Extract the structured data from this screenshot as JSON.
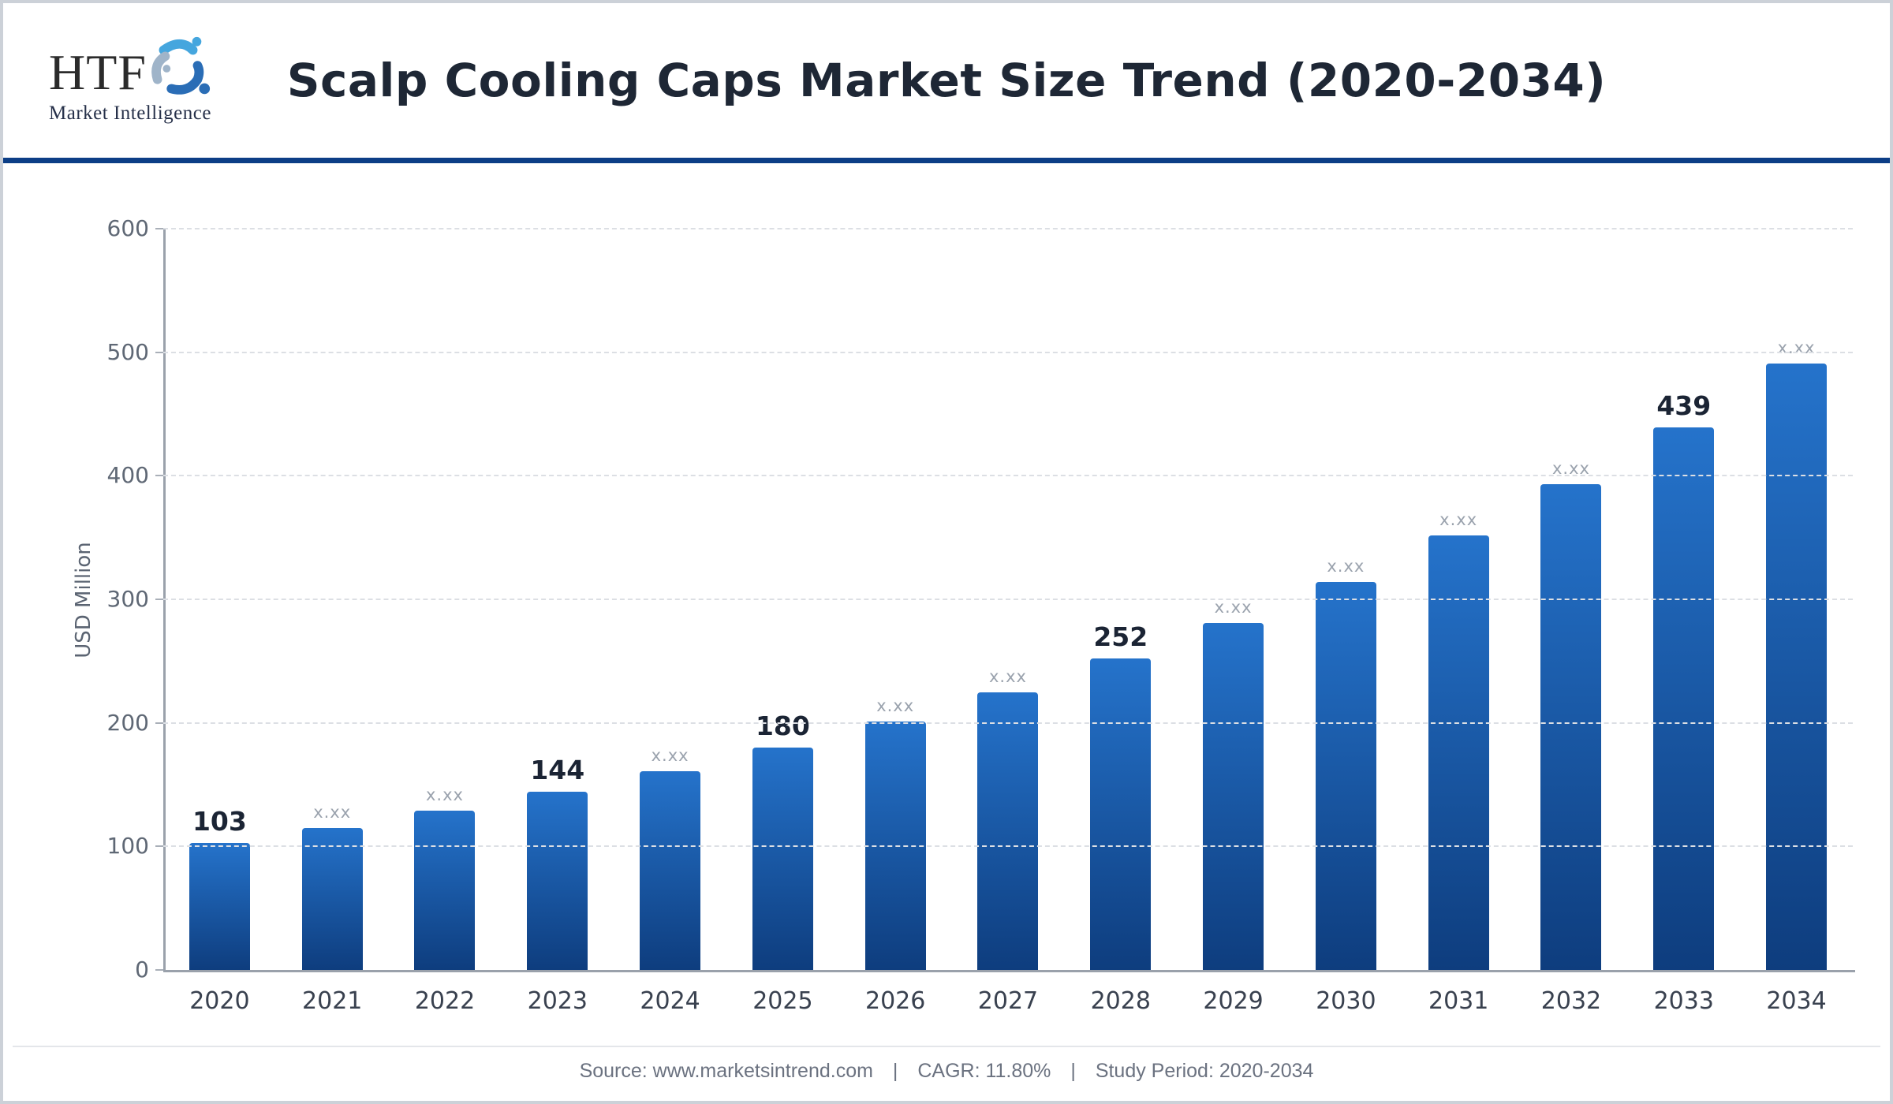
{
  "header": {
    "logo": {
      "acronym": "HTF",
      "subtitle": "Market Intelligence",
      "swirl_colors": [
        "#45a6de",
        "#9fb4c9",
        "#2a6db6"
      ]
    },
    "title": "Scalp Cooling Caps Market Size Trend (2020-2034)",
    "rule_color": "#0c3e86"
  },
  "chart_data": {
    "type": "bar",
    "title": "Scalp Cooling Caps Market Size Trend (2020-2034)",
    "xlabel": "",
    "ylabel": "USD Million",
    "ylim": [
      0,
      600
    ],
    "yticks": [
      0,
      100,
      200,
      300,
      400,
      500,
      600
    ],
    "grid": "horizontal dashed",
    "legend": "none",
    "categories": [
      "2020",
      "2021",
      "2022",
      "2023",
      "2024",
      "2025",
      "2026",
      "2027",
      "2028",
      "2029",
      "2030",
      "2031",
      "2032",
      "2033",
      "2034"
    ],
    "values": [
      103,
      115,
      129,
      144,
      161,
      180,
      201,
      225,
      252,
      281,
      314,
      352,
      393,
      439,
      491
    ],
    "bar_labels": [
      "103",
      "x.xx",
      "x.xx",
      "144",
      "x.xx",
      "180",
      "x.xx",
      "x.xx",
      "252",
      "x.xx",
      "x.xx",
      "x.xx",
      "x.xx",
      "439",
      "x.xx"
    ],
    "label_emphasis": [
      true,
      false,
      false,
      true,
      false,
      true,
      false,
      false,
      true,
      false,
      false,
      false,
      false,
      true,
      false
    ],
    "bar_gradient_top": "#2573cb",
    "bar_gradient_bottom": "#0e3d7e"
  },
  "footer": {
    "source": "Source: www.marketsintrend.com",
    "separator1": "|",
    "cagr": "CAGR: 11.80%",
    "separator2": "|",
    "study_period": "Study Period: 2020-2034"
  }
}
